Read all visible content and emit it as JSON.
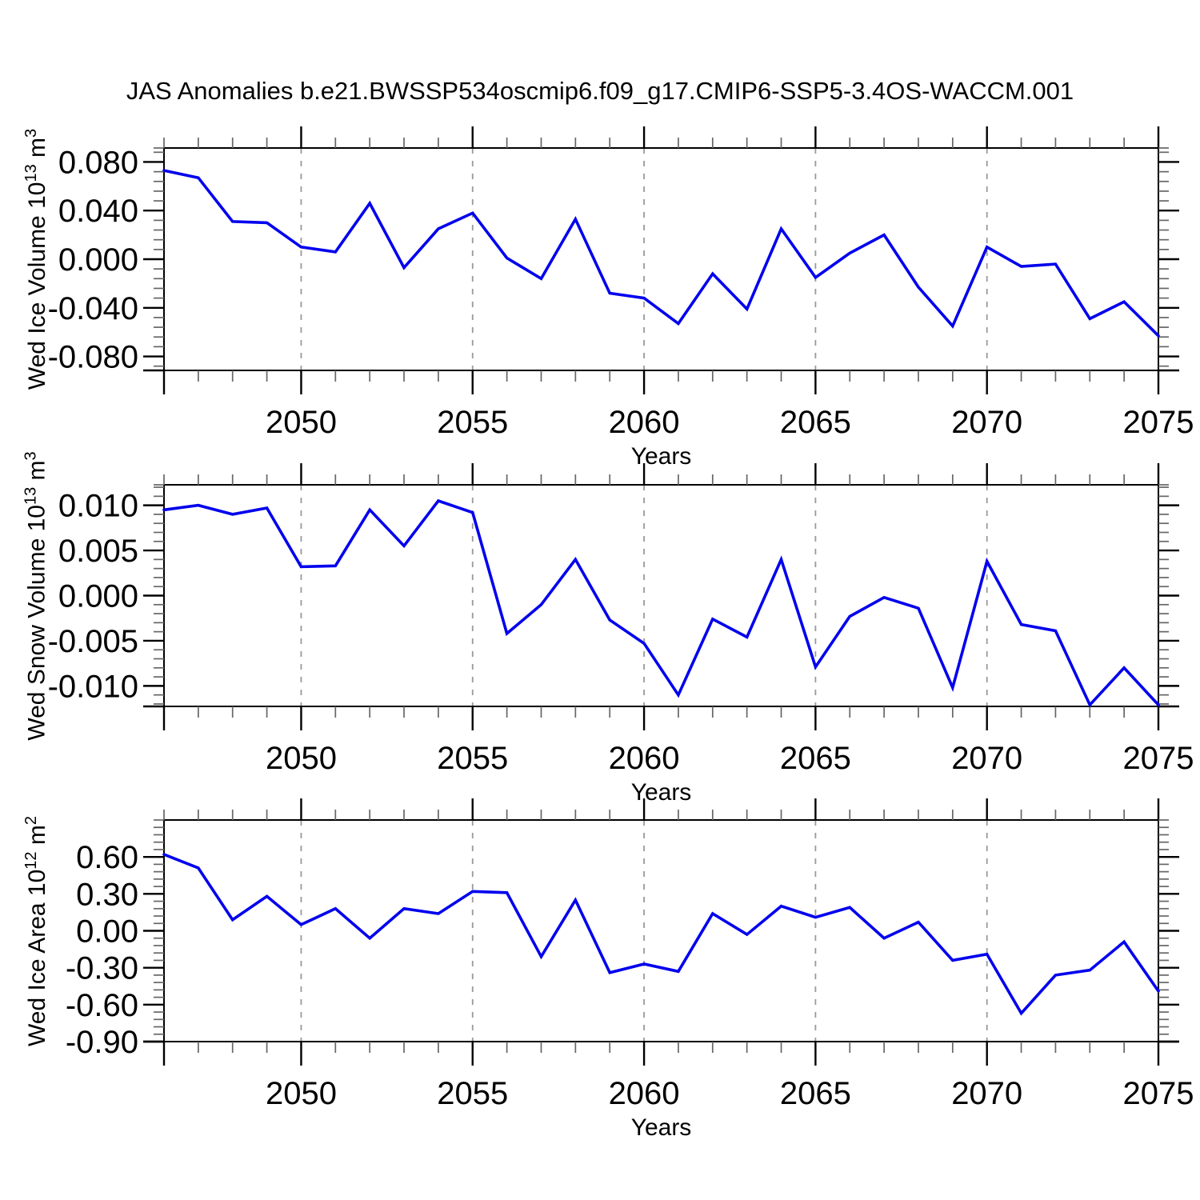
{
  "title": "JAS Anomalies b.e21.BWSSP534oscmip6.f09_g17.CMIP6-SSP5-3.4OS-WACCM.001",
  "styles": {
    "line_color": "#0000EE",
    "grid_color": "#999999",
    "axis_color": "#000000",
    "minor_tick_color": "#666666"
  },
  "chart_data": [
    {
      "type": "line",
      "panel": "ice-volume",
      "ylabel": "Wed Ice Volume 10^13 m^3",
      "ylabel_parts": {
        "text": "Wed Ice Volume 10",
        "sup1": "13",
        "mid": " m",
        "sup2": "3"
      },
      "xlabel": "Years",
      "x": [
        2046,
        2047,
        2048,
        2049,
        2050,
        2051,
        2052,
        2053,
        2054,
        2055,
        2056,
        2057,
        2058,
        2059,
        2060,
        2061,
        2062,
        2063,
        2064,
        2065,
        2066,
        2067,
        2068,
        2069,
        2070,
        2071,
        2072,
        2073,
        2074,
        2075
      ],
      "values": [
        0.073,
        0.067,
        0.031,
        0.03,
        0.01,
        0.006,
        0.046,
        -0.007,
        0.025,
        0.038,
        0.001,
        -0.016,
        0.033,
        -0.028,
        -0.032,
        -0.053,
        -0.012,
        -0.041,
        0.025,
        -0.015,
        0.005,
        0.02,
        -0.023,
        -0.055,
        0.01,
        -0.006,
        -0.004,
        -0.049,
        -0.035,
        -0.063
      ],
      "xlim": [
        2046,
        2075
      ],
      "ylim": [
        -0.0915,
        0.0915
      ],
      "yticks": [
        {
          "value": 0.08,
          "label": "0.080"
        },
        {
          "value": 0.04,
          "label": "0.040"
        },
        {
          "value": 0.0,
          "label": "0.000"
        },
        {
          "value": -0.04,
          "label": "-0.040"
        },
        {
          "value": -0.08,
          "label": "-0.080"
        }
      ],
      "y_minor_step": 0.008,
      "xticks": [
        {
          "value": 2050,
          "label": "2050"
        },
        {
          "value": 2055,
          "label": "2055"
        },
        {
          "value": 2060,
          "label": "2060"
        },
        {
          "value": 2065,
          "label": "2065"
        },
        {
          "value": 2070,
          "label": "2070"
        },
        {
          "value": 2075,
          "label": "2075"
        }
      ],
      "x_minor_step": 1,
      "grid_x": [
        2050,
        2055,
        2060,
        2065,
        2070
      ],
      "grid_on": true,
      "legend": "none"
    },
    {
      "type": "line",
      "panel": "snow-volume",
      "ylabel": "Wed Snow Volume 10^13 m^3",
      "ylabel_parts": {
        "text": "Wed Snow Volume 10",
        "sup1": "13",
        "mid": " m",
        "sup2": "3"
      },
      "xlabel": "Years",
      "x": [
        2046,
        2047,
        2048,
        2049,
        2050,
        2051,
        2052,
        2053,
        2054,
        2055,
        2056,
        2057,
        2058,
        2059,
        2060,
        2061,
        2062,
        2063,
        2064,
        2065,
        2066,
        2067,
        2068,
        2069,
        2070,
        2071,
        2072,
        2073,
        2074,
        2075
      ],
      "values": [
        0.0095,
        0.01,
        0.009,
        0.0097,
        0.0032,
        0.0033,
        0.0095,
        0.0055,
        0.0105,
        0.0092,
        -0.0042,
        -0.001,
        0.004,
        -0.0027,
        -0.0053,
        -0.011,
        -0.0026,
        -0.0046,
        0.004,
        -0.0079,
        -0.0023,
        -0.0002,
        -0.0014,
        -0.0102,
        0.0038,
        -0.0032,
        -0.0039,
        -0.0121,
        -0.008,
        -0.0121
      ],
      "xlim": [
        2046,
        2075
      ],
      "ylim": [
        -0.01227,
        0.01227
      ],
      "yticks": [
        {
          "value": 0.01,
          "label": "0.010"
        },
        {
          "value": 0.005,
          "label": "0.005"
        },
        {
          "value": 0.0,
          "label": "0.000"
        },
        {
          "value": -0.005,
          "label": "-0.005"
        },
        {
          "value": -0.01,
          "label": "-0.010"
        }
      ],
      "y_minor_step": 0.001,
      "xticks": [
        {
          "value": 2050,
          "label": "2050"
        },
        {
          "value": 2055,
          "label": "2055"
        },
        {
          "value": 2060,
          "label": "2060"
        },
        {
          "value": 2065,
          "label": "2065"
        },
        {
          "value": 2070,
          "label": "2070"
        },
        {
          "value": 2075,
          "label": "2075"
        }
      ],
      "x_minor_step": 1,
      "grid_x": [
        2050,
        2055,
        2060,
        2065,
        2070
      ],
      "grid_on": true,
      "legend": "none"
    },
    {
      "type": "line",
      "panel": "ice-area",
      "ylabel": "Wed Ice Area 10^12 m^2",
      "ylabel_parts": {
        "text": "Wed Ice Area 10",
        "sup1": "12",
        "mid": " m",
        "sup2": "2"
      },
      "xlabel": "Years",
      "x": [
        2046,
        2047,
        2048,
        2049,
        2050,
        2051,
        2052,
        2053,
        2054,
        2055,
        2056,
        2057,
        2058,
        2059,
        2060,
        2061,
        2062,
        2063,
        2064,
        2065,
        2066,
        2067,
        2068,
        2069,
        2070,
        2071,
        2072,
        2073,
        2074,
        2075
      ],
      "values": [
        0.62,
        0.51,
        0.09,
        0.28,
        0.05,
        0.18,
        -0.06,
        0.18,
        0.14,
        0.32,
        0.31,
        -0.21,
        0.25,
        -0.34,
        -0.27,
        -0.33,
        0.14,
        -0.03,
        0.2,
        0.11,
        0.19,
        -0.06,
        0.07,
        -0.24,
        -0.19,
        -0.67,
        -0.36,
        -0.32,
        -0.09,
        -0.49
      ],
      "xlim": [
        2046,
        2075
      ],
      "ylim": [
        -0.9,
        0.9
      ],
      "yticks": [
        {
          "value": 0.6,
          "label": "0.60"
        },
        {
          "value": 0.3,
          "label": "0.30"
        },
        {
          "value": 0.0,
          "label": "0.00"
        },
        {
          "value": -0.3,
          "label": "-0.30"
        },
        {
          "value": -0.6,
          "label": "-0.60"
        },
        {
          "value": -0.9,
          "label": "-0.90"
        }
      ],
      "y_minor_step": 0.06,
      "xticks": [
        {
          "value": 2050,
          "label": "2050"
        },
        {
          "value": 2055,
          "label": "2055"
        },
        {
          "value": 2060,
          "label": "2060"
        },
        {
          "value": 2065,
          "label": "2065"
        },
        {
          "value": 2070,
          "label": "2070"
        },
        {
          "value": 2075,
          "label": "2075"
        }
      ],
      "x_minor_step": 1,
      "grid_x": [
        2050,
        2055,
        2060,
        2065,
        2070
      ],
      "grid_on": true,
      "legend": "none"
    }
  ]
}
